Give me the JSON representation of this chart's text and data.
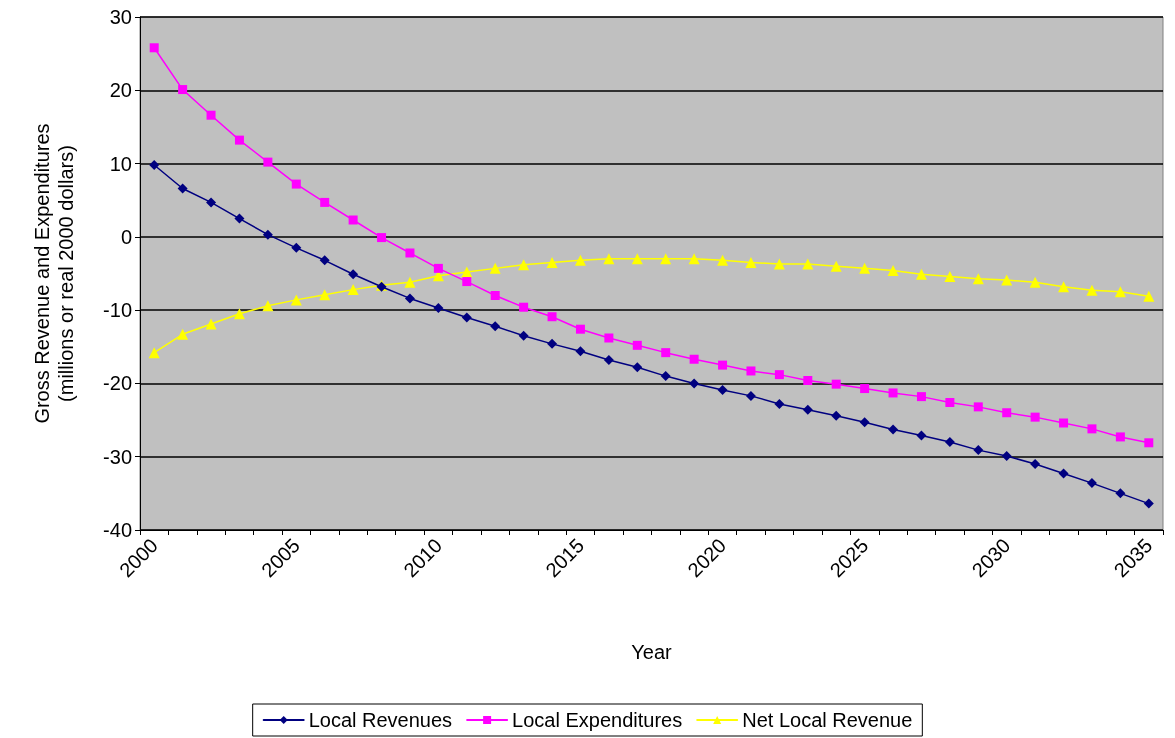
{
  "chart_data": {
    "type": "line",
    "xlabel": "Year",
    "ylabel": "Gross Revenue and Expenditures\n(millions or real 2000 dollars)",
    "categories": [
      "2000",
      null,
      null,
      null,
      null,
      "2005",
      null,
      null,
      null,
      null,
      "2010",
      null,
      null,
      null,
      null,
      "2015",
      null,
      null,
      null,
      null,
      "2020",
      null,
      null,
      null,
      null,
      "2025",
      null,
      null,
      null,
      null,
      "2030",
      null,
      null,
      null,
      null,
      "2035"
    ],
    "series": [
      {
        "name": "Local Revenues",
        "color": "#000080",
        "marker": "diamond",
        "values": [
          9.8,
          6.6,
          4.7,
          2.5,
          0.3,
          -1.5,
          -3.2,
          -5.1,
          -6.8,
          -8.4,
          -9.7,
          -11.0,
          -12.2,
          -13.5,
          -14.6,
          -15.6,
          -16.8,
          -17.8,
          -19.0,
          -20.0,
          -20.9,
          -21.7,
          -22.8,
          -23.6,
          -24.4,
          -25.3,
          -26.3,
          -27.1,
          -28.0,
          -29.1,
          -29.9,
          -31.0,
          -32.3,
          -33.6,
          -35.0,
          -36.4
        ]
      },
      {
        "name": "Local Expenditures",
        "color": "#ff00ff",
        "marker": "square",
        "values": [
          25.8,
          20.1,
          16.6,
          13.2,
          10.2,
          7.2,
          4.7,
          2.3,
          -0.1,
          -2.2,
          -4.3,
          -6.1,
          -8.0,
          -9.6,
          -10.9,
          -12.6,
          -13.8,
          -14.8,
          -15.8,
          -16.7,
          -17.5,
          -18.3,
          -18.8,
          -19.6,
          -20.1,
          -20.7,
          -21.3,
          -21.8,
          -22.6,
          -23.2,
          -24.0,
          -24.6,
          -25.4,
          -26.2,
          -27.3,
          -28.1
        ]
      },
      {
        "name": "Net Local Revenue",
        "color": "#ffff00",
        "marker": "triangle",
        "values": [
          -15.8,
          -13.3,
          -11.9,
          -10.5,
          -9.4,
          -8.6,
          -7.9,
          -7.2,
          -6.6,
          -6.2,
          -5.3,
          -4.8,
          -4.3,
          -3.8,
          -3.5,
          -3.2,
          -3.0,
          -3.0,
          -3.0,
          -3.0,
          -3.2,
          -3.5,
          -3.7,
          -3.7,
          -4.0,
          -4.3,
          -4.6,
          -5.1,
          -5.4,
          -5.7,
          -5.9,
          -6.2,
          -6.8,
          -7.3,
          -7.5,
          -8.1
        ]
      }
    ],
    "ylim": [
      -40,
      30
    ],
    "yticks": [
      -40,
      -30,
      -20,
      -10,
      0,
      10,
      20,
      30
    ],
    "grid": "y",
    "legend": "bottom",
    "line_style": "solid"
  }
}
